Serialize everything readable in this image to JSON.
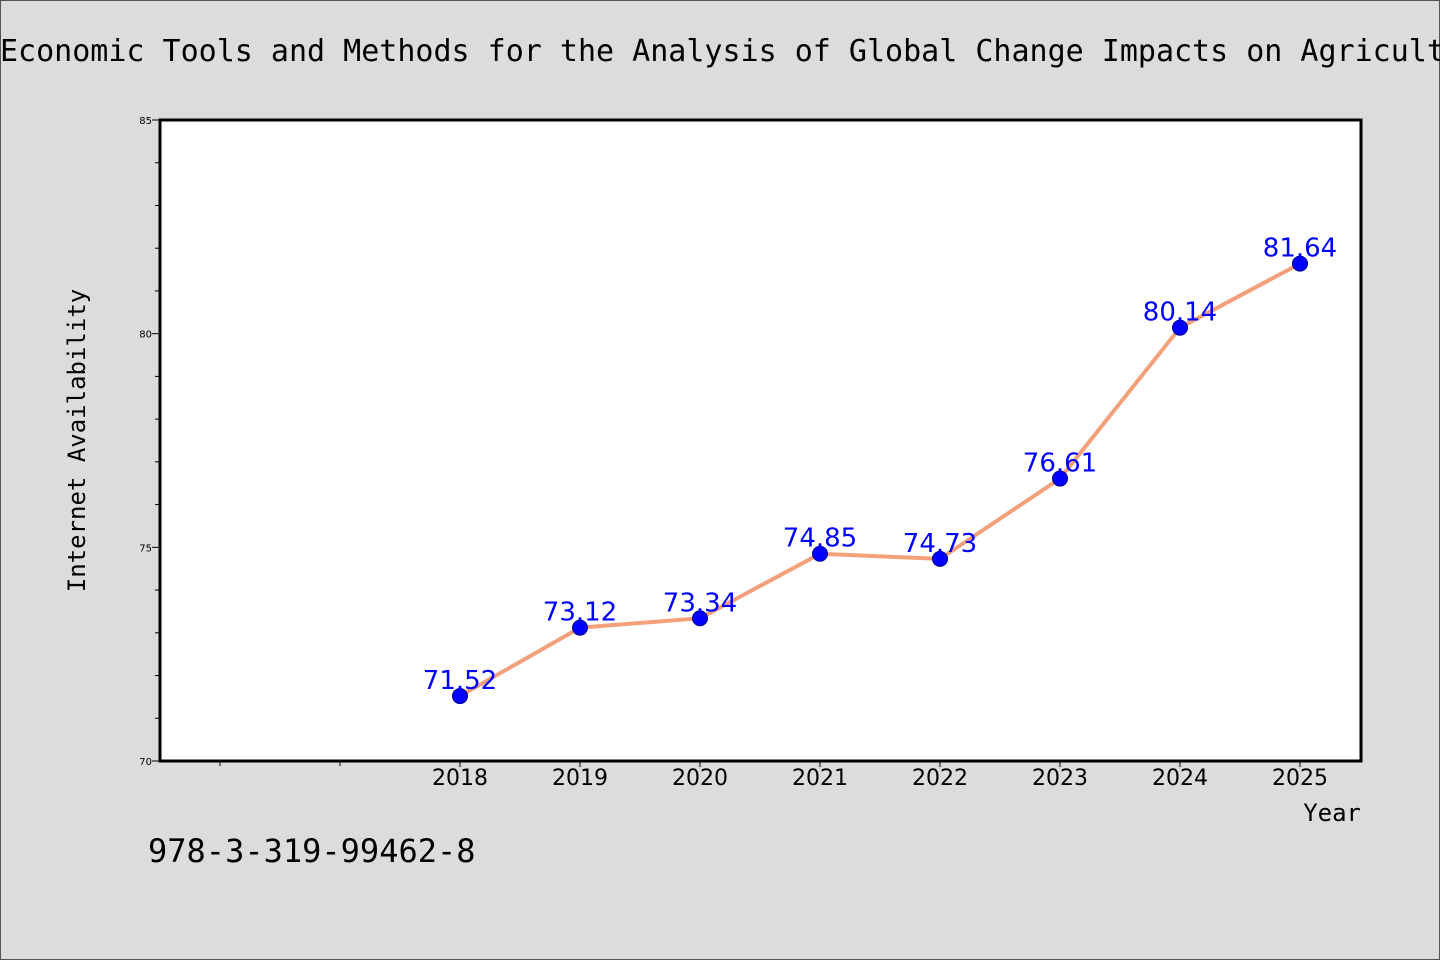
{
  "chart_data": {
    "type": "line",
    "title": "Economic Tools and Methods for the Analysis of Global Change Impacts on Agricult",
    "xlabel": "Year",
    "ylabel": "Internet Availability",
    "categories": [
      "2018",
      "2019",
      "2020",
      "2021",
      "2022",
      "2023",
      "2024",
      "2025"
    ],
    "series": [
      {
        "values": [
          71.52,
          73.12,
          73.34,
          74.85,
          74.73,
          76.61,
          80.14,
          81.64
        ],
        "data_labels": [
          "71.52",
          "73.12",
          "73.34",
          "74.85",
          "74.73",
          "76.61",
          "80.14",
          "81.64"
        ]
      }
    ],
    "ylim": [
      70,
      85
    ],
    "y_ticks": [
      "70",
      "75",
      "80",
      "85"
    ],
    "grid": false,
    "colors": {
      "line": "#f4a07a",
      "marker": "#0000ff",
      "marker_edge": "#00008b",
      "data_label": "#0000ff"
    }
  },
  "footer": {
    "isbn": "978-3-319-99462-8"
  }
}
